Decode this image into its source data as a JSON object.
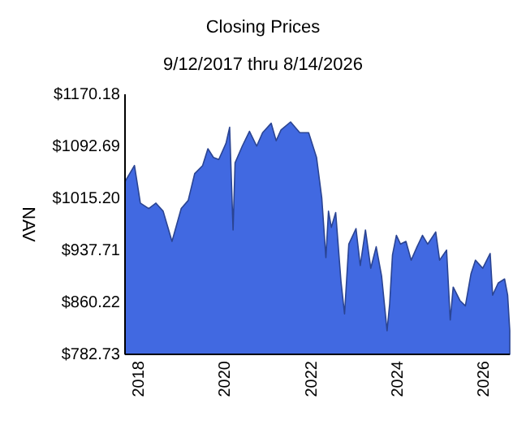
{
  "chart_data": {
    "type": "area",
    "title": "Closing Prices",
    "subtitle": "9/12/2017 thru 8/14/2026",
    "ylabel": "NAV",
    "x": [
      "2017-09-12",
      "2017-12",
      "2018-01-20",
      "2018-04",
      "2018-06",
      "2018-08",
      "2018-10-15",
      "2019-01",
      "2019-03",
      "2019-04-25",
      "2019-07",
      "2019-08-15",
      "2019-10",
      "2019-11-15",
      "2020-01-15",
      "2020-02-15",
      "2020-03-15",
      "2020-04",
      "2020-06",
      "2020-08",
      "2020-10",
      "2020-11-20",
      "2021-02",
      "2021-03-15",
      "2021-04-25",
      "2021-07-15",
      "2021-10",
      "2021-12-15",
      "2022-02-20",
      "2022-04-05",
      "2022-05-10",
      "2022-06-01",
      "2022-06-25",
      "2022-08",
      "2022-09-15",
      "2022-10-15",
      "2022-11-20",
      "2023-01-20",
      "2023-02-25",
      "2023-04-10",
      "2023-05-25",
      "2023-07-10",
      "2023-08-25",
      "2023-10-10",
      "2023-11-01",
      "2023-11-25",
      "2023-12-28",
      "2024-02-01",
      "2024-03-18",
      "2024-05-01",
      "2024-06-20",
      "2024-08-05",
      "2024-09-18",
      "2024-11-25",
      "2024-12-28",
      "2025-02-25",
      "2025-03-28",
      "2025-04-22",
      "2025-06-18",
      "2025-08-03",
      "2025-09-20",
      "2025-10-27",
      "2025-12-28",
      "2026-03-01",
      "2026-03-22",
      "2026-05-08",
      "2026-07-01",
      "2026-07-27",
      "2026-08-14"
    ],
    "series": [
      {
        "color": "#4169e1",
        "values": [
          1040,
          1064,
          1008,
          1000,
          1008,
          996,
          951,
          1000,
          1012,
          1052,
          1064,
          1089,
          1076,
          1073,
          1097,
          1121,
          968,
          1068,
          1093,
          1115,
          1093,
          1113,
          1127,
          1101,
          1117,
          1129,
          1113,
          1113,
          1076,
          1016,
          927,
          996,
          972,
          994,
          891,
          843,
          947,
          970,
          915,
          968,
          911,
          943,
          899,
          818,
          858,
          931,
          960,
          947,
          951,
          923,
          943,
          960,
          947,
          965,
          923,
          938,
          834,
          883,
          863,
          855,
          903,
          923,
          911,
          933,
          871,
          889,
          895,
          871,
          818
        ]
      }
    ],
    "xlim": [
      "2017-09-12",
      "2026-08-14"
    ],
    "xticks": [
      "2018",
      "2020",
      "2022",
      "2024",
      "2026"
    ],
    "ylim": [
      782.73,
      1170.18
    ],
    "yticks": [
      {
        "value": 782.73,
        "label": "$782.73"
      },
      {
        "value": 860.22,
        "label": "$860.22"
      },
      {
        "value": 937.71,
        "label": "$937.71"
      },
      {
        "value": 1015.2,
        "label": "$1015.20"
      },
      {
        "value": 1092.69,
        "label": "$1092.69"
      },
      {
        "value": 1170.18,
        "label": "$1170.18"
      }
    ],
    "grid": false
  }
}
